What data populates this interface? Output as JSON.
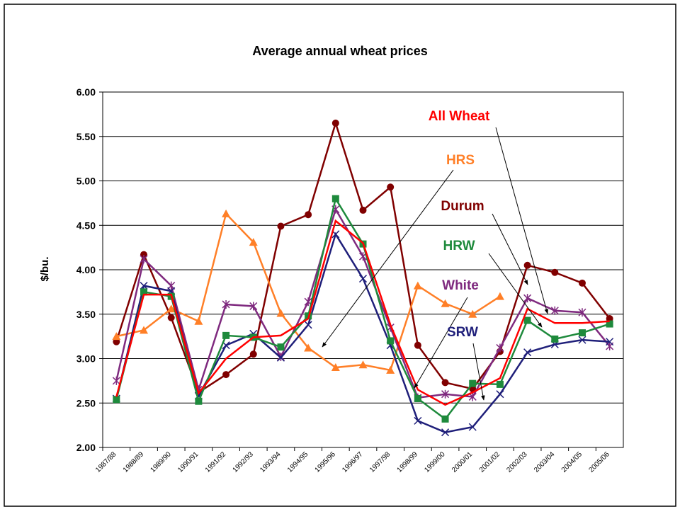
{
  "chart_data": {
    "type": "line",
    "title": "Average annual wheat prices",
    "y_label": "$/bu.",
    "categories": [
      "1987/88",
      "1988/89",
      "1989/90",
      "1990/91",
      "1991/92",
      "1992/93",
      "1993/94",
      "1994/95",
      "1995/96",
      "1996/97",
      "1997/98",
      "1998/99",
      "1999/00",
      "2000/01",
      "2001/02",
      "2002/03",
      "2003/04",
      "2004/05",
      "2005/06"
    ],
    "ylim": [
      2.0,
      6.0
    ],
    "yticks": [
      {
        "value": 2.0,
        "label": "2.00"
      },
      {
        "value": 2.5,
        "label": "2.50"
      },
      {
        "value": 3.0,
        "label": "3.00"
      },
      {
        "value": 3.5,
        "label": "3.50"
      },
      {
        "value": 4.0,
        "label": "4.00"
      },
      {
        "value": 4.5,
        "label": "4.50"
      },
      {
        "value": 5.0,
        "label": "5.00"
      },
      {
        "value": 5.5,
        "label": "5.50"
      },
      {
        "value": 6.0,
        "label": "6.00"
      }
    ],
    "grid": true,
    "series": [
      {
        "name": "Durum",
        "color": "#800000",
        "marker": "circle",
        "values": [
          3.19,
          4.17,
          3.46,
          2.62,
          2.82,
          3.05,
          4.49,
          4.62,
          5.65,
          4.67,
          4.93,
          3.15,
          2.73,
          2.66,
          3.08,
          4.05,
          3.97,
          3.85,
          3.45
        ]
      },
      {
        "name": "HRS",
        "color": "#ff7f27",
        "marker": "triangle",
        "values": [
          3.25,
          3.32,
          3.56,
          3.42,
          4.63,
          4.31,
          3.51,
          3.12,
          2.9,
          2.93,
          2.87,
          3.82,
          3.62,
          3.5,
          3.7,
          null,
          null,
          null,
          null
        ]
      },
      {
        "name": "White",
        "color": "#7f2a7f",
        "marker": "asterisk",
        "values": [
          2.75,
          4.12,
          3.82,
          2.65,
          3.61,
          3.59,
          3.02,
          3.64,
          4.68,
          4.15,
          3.35,
          2.56,
          2.6,
          2.57,
          3.12,
          3.68,
          3.54,
          3.52,
          3.14
        ]
      },
      {
        "name": "SRW",
        "color": "#1f1f7a",
        "marker": "x",
        "values": [
          2.55,
          3.82,
          3.76,
          2.58,
          3.15,
          3.28,
          3.01,
          3.38,
          4.4,
          3.9,
          3.15,
          2.3,
          2.17,
          2.23,
          2.6,
          3.07,
          3.16,
          3.21,
          3.19
        ]
      },
      {
        "name": "HRW",
        "color": "#1e8a3c",
        "marker": "square",
        "values": [
          2.54,
          3.75,
          3.7,
          2.52,
          3.26,
          3.24,
          3.13,
          3.48,
          4.8,
          4.29,
          3.2,
          2.55,
          2.32,
          2.72,
          2.71,
          3.43,
          3.22,
          3.29,
          3.39
        ]
      },
      {
        "name": "All Wheat",
        "color": "#ff0000",
        "marker": "none",
        "values": [
          2.57,
          3.72,
          3.72,
          2.61,
          3.0,
          3.24,
          3.26,
          3.45,
          4.55,
          4.3,
          3.38,
          2.65,
          2.48,
          2.62,
          2.78,
          3.56,
          3.4,
          3.4,
          3.42
        ]
      }
    ]
  }
}
